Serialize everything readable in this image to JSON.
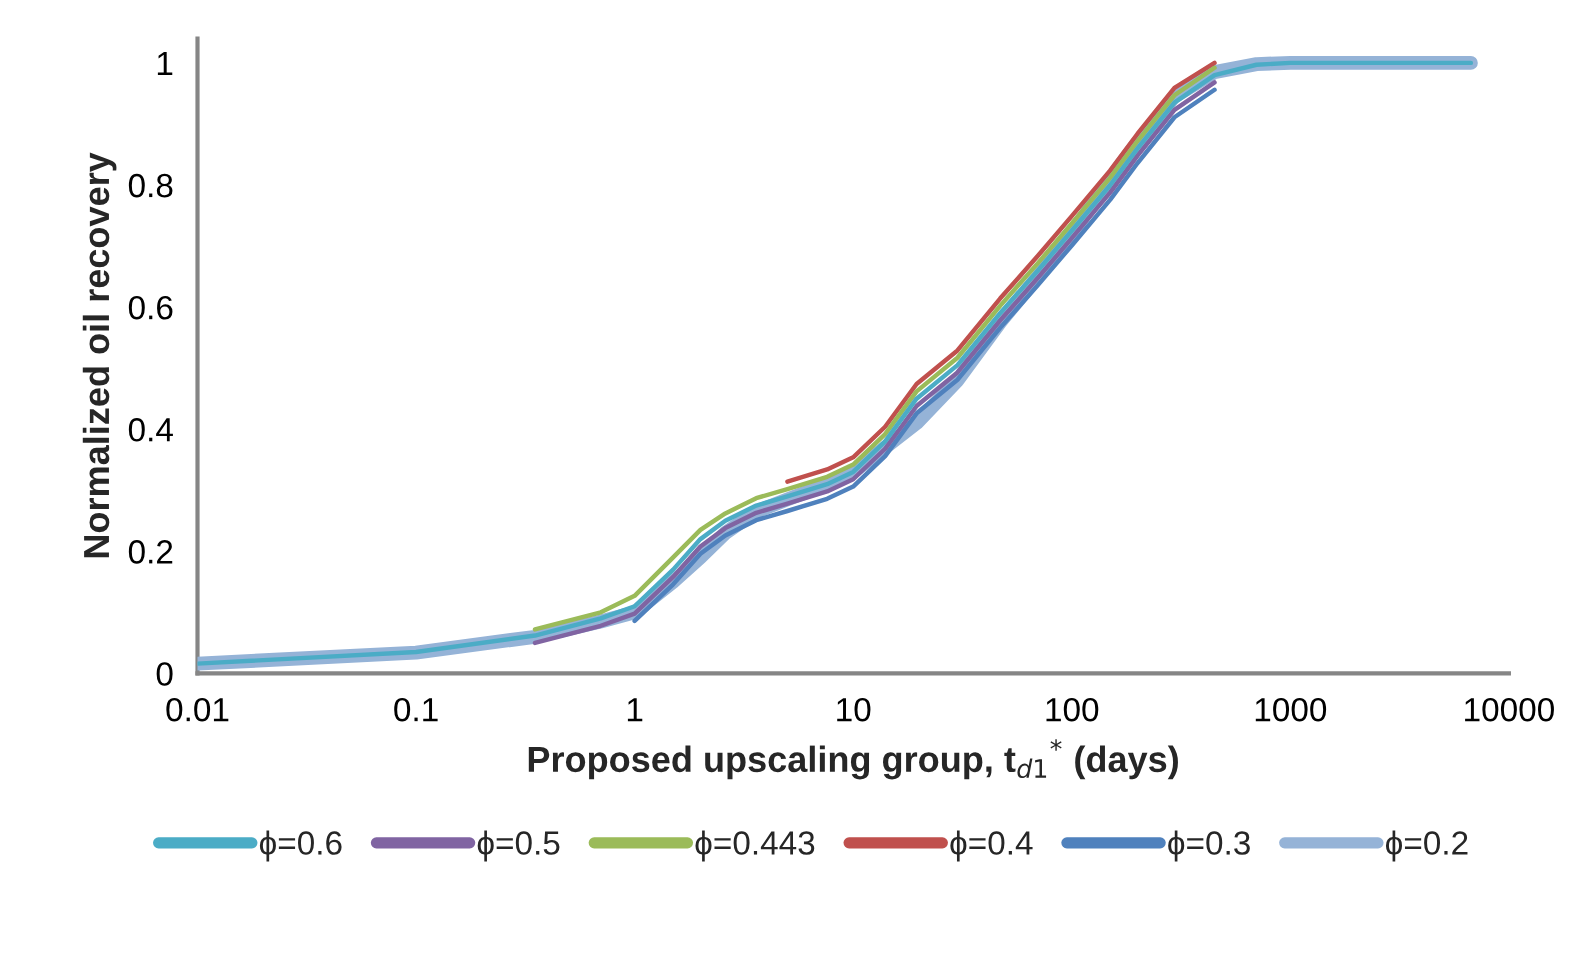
{
  "chart_data": {
    "type": "line",
    "xlabel": "Proposed upscaling group, t$_{d1}$$^{*}$ (days)",
    "ylabel": "Normalized oil recovery",
    "x": [
      0.01,
      0.1,
      0.35,
      0.7,
      1,
      1.5,
      2,
      2.6,
      3.6,
      5,
      7.6,
      10,
      14,
      19.5,
      30,
      47,
      70,
      100,
      150,
      200,
      295,
      450,
      700,
      1000,
      3000,
      6700
    ],
    "series": [
      {
        "name": "ϕ=0.6",
        "color": "#4bacc6",
        "values": [
          0.016,
          0.035,
          0.062,
          0.09,
          0.11,
          0.17,
          0.22,
          0.25,
          0.275,
          0.29,
          0.31,
          0.33,
          0.38,
          0.45,
          0.505,
          0.59,
          0.66,
          0.725,
          0.8,
          0.86,
          0.935,
          0.98,
          0.997,
          1,
          1,
          1
        ]
      },
      {
        "name": "ϕ=0.5",
        "color": "#8064a2",
        "values": [
          null,
          null,
          0.05,
          0.078,
          0.098,
          0.158,
          0.208,
          0.238,
          0.263,
          0.278,
          0.298,
          0.318,
          0.368,
          0.438,
          0.493,
          0.578,
          0.648,
          0.713,
          0.788,
          0.848,
          0.923,
          0.968,
          null,
          null,
          null,
          null
        ]
      },
      {
        "name": "ϕ=0.443",
        "color": "#9bbb59",
        "values": [
          null,
          null,
          0.072,
          0.1,
          0.127,
          0.19,
          0.235,
          0.262,
          0.287,
          0.302,
          0.322,
          0.342,
          0.392,
          0.462,
          0.517,
          0.602,
          0.672,
          0.737,
          0.812,
          0.872,
          0.947,
          0.992,
          null,
          null,
          null,
          null
        ]
      },
      {
        "name": "ϕ=0.4",
        "color": "#c0504d",
        "values": [
          null,
          null,
          null,
          null,
          null,
          null,
          null,
          null,
          null,
          0.314,
          0.334,
          0.354,
          0.404,
          0.474,
          0.529,
          0.614,
          0.684,
          0.749,
          0.824,
          0.884,
          0.959,
          1.0,
          null,
          null,
          null,
          null
        ]
      },
      {
        "name": "ϕ=0.3",
        "color": "#4f81bd",
        "values": [
          null,
          null,
          null,
          null,
          0.086,
          0.146,
          0.196,
          0.226,
          0.251,
          0.266,
          0.286,
          0.306,
          0.356,
          0.426,
          0.481,
          0.566,
          0.636,
          0.701,
          0.776,
          0.836,
          0.911,
          0.956,
          null,
          null,
          null,
          null
        ]
      },
      {
        "name": "ϕ=0.2",
        "color": "#95b3d7",
        "values": [
          0.016,
          0.034,
          0.06,
          0.085,
          0.1,
          0.15,
          0.19,
          0.23,
          0.265,
          0.285,
          0.31,
          0.33,
          0.37,
          0.41,
          0.48,
          0.575,
          0.65,
          0.72,
          0.81,
          0.87,
          0.945,
          0.985,
          0.998,
          1,
          1,
          1
        ]
      }
    ],
    "log": "x",
    "xlim": [
      0.01,
      10000
    ],
    "xticks": [
      0.01,
      0.1,
      1,
      10,
      100,
      1000,
      10000
    ],
    "ylim": [
      0,
      1.04
    ],
    "yticks": [
      0,
      0.2,
      0.4,
      0.6,
      0.8,
      1
    ],
    "grid": false,
    "legend": "bottom",
    "marker": "none",
    "line_style": "solid"
  }
}
